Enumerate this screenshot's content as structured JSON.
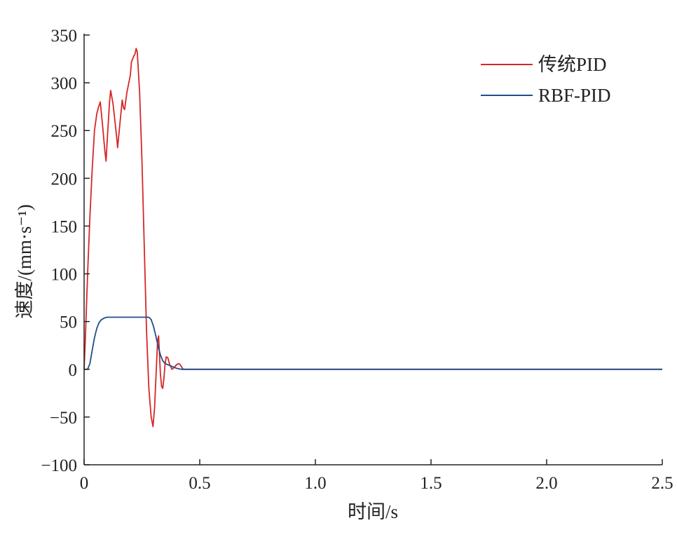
{
  "chart_data": {
    "type": "line",
    "xlabel": "时间/s",
    "ylabel": "速度/(mm·s⁻¹)",
    "xlim": [
      0,
      2.5
    ],
    "ylim": [
      -100,
      350
    ],
    "x_ticks": [
      0,
      0.5,
      1.0,
      1.5,
      2.0,
      2.5
    ],
    "x_tick_labels": [
      "0",
      "0.5",
      "1.0",
      "1.5",
      "2.0",
      "2.5"
    ],
    "y_ticks": [
      -100,
      -50,
      0,
      50,
      100,
      150,
      200,
      250,
      300,
      350
    ],
    "y_tick_labels": [
      "−100",
      "−50",
      "0",
      "50",
      "100",
      "150",
      "200",
      "250",
      "300",
      "350"
    ],
    "grid": false,
    "legend_position": "top-right",
    "series": [
      {
        "name": "传统PID",
        "color": "#d62728",
        "points": [
          [
            0,
            0
          ],
          [
            0.005,
            30
          ],
          [
            0.015,
            100
          ],
          [
            0.025,
            160
          ],
          [
            0.035,
            210
          ],
          [
            0.045,
            250
          ],
          [
            0.055,
            268
          ],
          [
            0.063,
            275
          ],
          [
            0.07,
            280
          ],
          [
            0.08,
            255
          ],
          [
            0.09,
            228
          ],
          [
            0.095,
            218
          ],
          [
            0.1,
            240
          ],
          [
            0.11,
            280
          ],
          [
            0.115,
            292
          ],
          [
            0.125,
            278
          ],
          [
            0.14,
            245
          ],
          [
            0.145,
            232
          ],
          [
            0.155,
            258
          ],
          [
            0.165,
            282
          ],
          [
            0.17,
            274
          ],
          [
            0.175,
            272
          ],
          [
            0.185,
            290
          ],
          [
            0.2,
            308
          ],
          [
            0.205,
            322
          ],
          [
            0.215,
            328
          ],
          [
            0.22,
            330
          ],
          [
            0.225,
            336
          ],
          [
            0.23,
            332
          ],
          [
            0.24,
            290
          ],
          [
            0.25,
            220
          ],
          [
            0.26,
            130
          ],
          [
            0.27,
            40
          ],
          [
            0.28,
            -20
          ],
          [
            0.29,
            -50
          ],
          [
            0.298,
            -60
          ],
          [
            0.305,
            -40
          ],
          [
            0.312,
            0
          ],
          [
            0.318,
            30
          ],
          [
            0.322,
            35
          ],
          [
            0.327,
            10
          ],
          [
            0.33,
            -5
          ],
          [
            0.335,
            -18
          ],
          [
            0.34,
            -20
          ],
          [
            0.345,
            -10
          ],
          [
            0.35,
            5
          ],
          [
            0.355,
            13
          ],
          [
            0.362,
            12
          ],
          [
            0.37,
            5
          ],
          [
            0.38,
            0
          ],
          [
            0.39,
            2
          ],
          [
            0.4,
            5
          ],
          [
            0.41,
            6
          ],
          [
            0.415,
            5
          ],
          [
            0.42,
            3
          ],
          [
            0.425,
            1
          ],
          [
            0.43,
            0
          ],
          [
            0.5,
            0
          ],
          [
            1.0,
            0
          ],
          [
            1.5,
            0
          ],
          [
            2.0,
            0
          ],
          [
            2.5,
            0
          ]
        ]
      },
      {
        "name": "RBF-PID",
        "color": "#1f4e8c",
        "points": [
          [
            0,
            0
          ],
          [
            0.015,
            0
          ],
          [
            0.025,
            6
          ],
          [
            0.035,
            20
          ],
          [
            0.045,
            33
          ],
          [
            0.055,
            43
          ],
          [
            0.065,
            49
          ],
          [
            0.075,
            52
          ],
          [
            0.09,
            54
          ],
          [
            0.1,
            54.5
          ],
          [
            0.28,
            54.5
          ],
          [
            0.29,
            52
          ],
          [
            0.3,
            45
          ],
          [
            0.31,
            35
          ],
          [
            0.32,
            24
          ],
          [
            0.33,
            15
          ],
          [
            0.34,
            9
          ],
          [
            0.35,
            6
          ],
          [
            0.36,
            5
          ],
          [
            0.37,
            4
          ],
          [
            0.38,
            3
          ],
          [
            0.39,
            2
          ],
          [
            0.4,
            1
          ],
          [
            0.41,
            0.5
          ],
          [
            0.42,
            0
          ],
          [
            0.5,
            0
          ],
          [
            1.0,
            0
          ],
          [
            1.5,
            0
          ],
          [
            2.0,
            0
          ],
          [
            2.5,
            0
          ]
        ]
      }
    ]
  }
}
